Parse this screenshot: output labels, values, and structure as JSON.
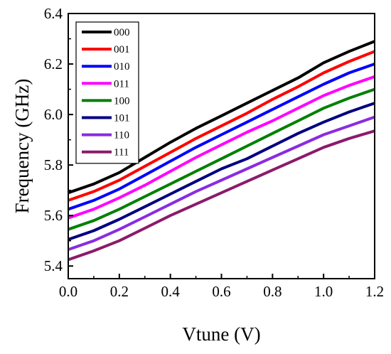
{
  "chart_data": {
    "type": "line",
    "title": "",
    "xlabel": "Vtune (V)",
    "ylabel": "Frequency (GHz)",
    "xlim": [
      0.0,
      1.2
    ],
    "ylim": [
      5.35,
      6.4
    ],
    "xticks": [
      0.0,
      0.2,
      0.4,
      0.6,
      0.8,
      1.0,
      1.2
    ],
    "xtick_labels": [
      "0.0",
      "0.2",
      "0.4",
      "0.6",
      "0.8",
      "1.0",
      "1.2"
    ],
    "yticks": [
      5.4,
      5.6,
      5.8,
      6.0,
      6.2,
      6.4
    ],
    "ytick_labels": [
      "5.4",
      "5.6",
      "5.8",
      "6.0",
      "6.2",
      "6.4"
    ],
    "grid": false,
    "legend_position": "top-left",
    "x": [
      0.0,
      0.1,
      0.2,
      0.3,
      0.4,
      0.5,
      0.6,
      0.7,
      0.8,
      0.9,
      1.0,
      1.1,
      1.2
    ],
    "series": [
      {
        "name": "000",
        "color": "#000000",
        "values": [
          5.69,
          5.725,
          5.77,
          5.83,
          5.89,
          5.945,
          5.995,
          6.045,
          6.095,
          6.145,
          6.205,
          6.25,
          6.29
        ]
      },
      {
        "name": "001",
        "color": "#ff0000",
        "values": [
          5.66,
          5.695,
          5.74,
          5.795,
          5.85,
          5.905,
          5.955,
          6.005,
          6.06,
          6.11,
          6.165,
          6.21,
          6.25
        ]
      },
      {
        "name": "010",
        "color": "#0000ff",
        "values": [
          5.625,
          5.66,
          5.705,
          5.76,
          5.815,
          5.87,
          5.92,
          5.97,
          6.02,
          6.07,
          6.12,
          6.165,
          6.2
        ]
      },
      {
        "name": "011",
        "color": "#ff00ff",
        "values": [
          5.59,
          5.625,
          5.67,
          5.72,
          5.775,
          5.83,
          5.88,
          5.93,
          5.975,
          6.025,
          6.075,
          6.115,
          6.15
        ]
      },
      {
        "name": "100",
        "color": "#008000",
        "values": [
          5.545,
          5.58,
          5.625,
          5.675,
          5.725,
          5.775,
          5.825,
          5.875,
          5.925,
          5.975,
          6.025,
          6.065,
          6.1
        ]
      },
      {
        "name": "101",
        "color": "#000080",
        "values": [
          5.505,
          5.54,
          5.585,
          5.635,
          5.685,
          5.735,
          5.785,
          5.825,
          5.875,
          5.925,
          5.97,
          6.01,
          6.045
        ]
      },
      {
        "name": "110",
        "color": "#8a2be2",
        "values": [
          5.465,
          5.5,
          5.545,
          5.595,
          5.645,
          5.695,
          5.74,
          5.785,
          5.83,
          5.875,
          5.92,
          5.955,
          5.99
        ]
      },
      {
        "name": "111",
        "color": "#8b1a6b",
        "values": [
          5.425,
          5.46,
          5.5,
          5.55,
          5.6,
          5.645,
          5.69,
          5.735,
          5.78,
          5.825,
          5.87,
          5.905,
          5.935
        ]
      }
    ]
  }
}
